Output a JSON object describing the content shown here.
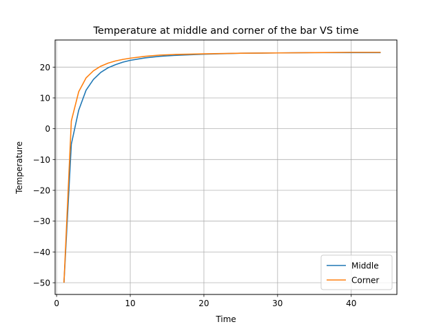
{
  "chart_data": {
    "type": "line",
    "title": "Temperature at middle and corner of the bar VS time",
    "xlabel": "Time",
    "ylabel": "Temperature",
    "xlim": [
      -0.2,
      46.2
    ],
    "ylim": [
      -53.8,
      28.8
    ],
    "xticks": [
      0,
      10,
      20,
      30,
      40
    ],
    "yticks": [
      -50,
      -40,
      -30,
      -20,
      -10,
      0,
      10,
      20
    ],
    "xtick_labels": [
      "0",
      "10",
      "20",
      "30",
      "40"
    ],
    "ytick_labels": [
      "−50",
      "−40",
      "−30",
      "−20",
      "−10",
      "0",
      "10",
      "20"
    ],
    "grid": true,
    "legend_position": "lower-right",
    "series": [
      {
        "name": "Middle",
        "color": "#1f77b4",
        "x": [
          1,
          2,
          3,
          4,
          5,
          6,
          7,
          8,
          9,
          10,
          12,
          14,
          16,
          18,
          20,
          25,
          30,
          35,
          40,
          44
        ],
        "y": [
          -50,
          -5,
          6,
          12.5,
          16,
          18.3,
          19.8,
          20.8,
          21.6,
          22.2,
          23.0,
          23.5,
          23.8,
          24.0,
          24.2,
          24.5,
          24.6,
          24.7,
          24.7,
          24.7
        ]
      },
      {
        "name": "Corner",
        "color": "#ff7f0e",
        "x": [
          1,
          2,
          3,
          4,
          5,
          6,
          7,
          8,
          9,
          10,
          12,
          14,
          16,
          18,
          20,
          25,
          30,
          35,
          40,
          44
        ],
        "y": [
          -50,
          2.5,
          12,
          16.5,
          18.8,
          20.3,
          21.3,
          22.0,
          22.5,
          22.9,
          23.5,
          23.9,
          24.1,
          24.2,
          24.3,
          24.5,
          24.6,
          24.7,
          24.8,
          24.8
        ]
      }
    ]
  }
}
